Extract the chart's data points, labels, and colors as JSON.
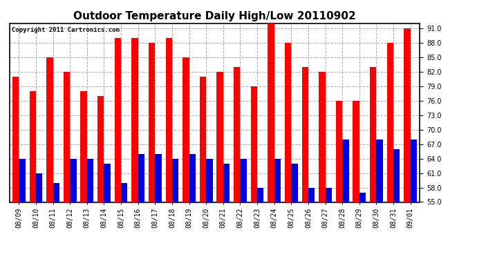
{
  "title": "Outdoor Temperature Daily High/Low 20110902",
  "copyright": "Copyright 2011 Cartronics.com",
  "dates": [
    "08/09",
    "08/10",
    "08/11",
    "08/12",
    "08/13",
    "08/14",
    "08/15",
    "08/16",
    "08/17",
    "08/18",
    "08/19",
    "08/20",
    "08/21",
    "08/22",
    "08/23",
    "08/24",
    "08/25",
    "08/26",
    "08/27",
    "08/28",
    "08/29",
    "08/30",
    "08/31",
    "09/01"
  ],
  "highs": [
    81,
    78,
    85,
    82,
    78,
    77,
    89,
    89,
    88,
    89,
    85,
    81,
    82,
    83,
    79,
    92,
    88,
    83,
    82,
    76,
    76,
    83,
    88,
    91
  ],
  "lows": [
    64,
    61,
    59,
    64,
    64,
    63,
    59,
    65,
    65,
    64,
    65,
    64,
    63,
    64,
    58,
    64,
    63,
    58,
    58,
    68,
    57,
    68,
    66,
    68
  ],
  "high_color": "#ff0000",
  "low_color": "#0000dd",
  "ylim": [
    55,
    92
  ],
  "yticks": [
    55.0,
    58.0,
    61.0,
    64.0,
    67.0,
    70.0,
    73.0,
    76.0,
    79.0,
    82.0,
    85.0,
    88.0,
    91.0
  ],
  "grid_color": "#aaaaaa",
  "bg_color": "#ffffff",
  "bar_width": 0.38,
  "title_fontsize": 11,
  "tick_fontsize": 7,
  "copyright_fontsize": 6.5
}
